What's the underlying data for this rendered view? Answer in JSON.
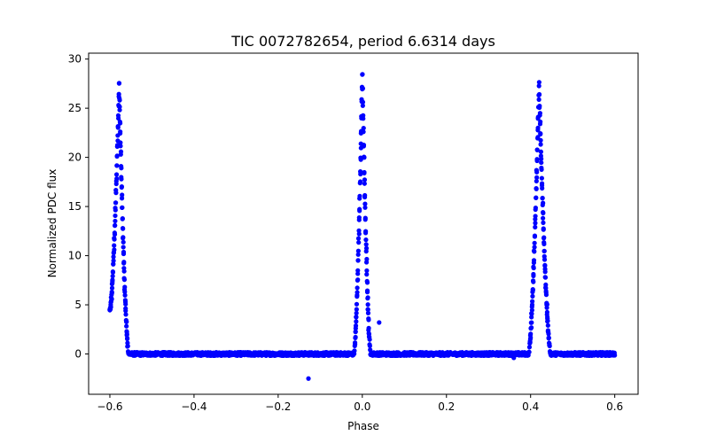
{
  "chart_data": {
    "type": "scatter",
    "title": "TIC 0072782654, period 6.6314 days",
    "xlabel": "Phase",
    "ylabel": "Normalized PDC flux",
    "xlim": [
      -0.6505,
      0.6555
    ],
    "ylim": [
      -4.1,
      30.6
    ],
    "xticks": [
      -0.6,
      -0.4,
      -0.2,
      0.0,
      0.2,
      0.4,
      0.6
    ],
    "xtick_labels": [
      "−0.6",
      "−0.4",
      "−0.2",
      "0.0",
      "0.2",
      "0.4",
      "0.6"
    ],
    "yticks": [
      0,
      5,
      10,
      15,
      20,
      25,
      30
    ],
    "ytick_labels": [
      "0",
      "5",
      "10",
      "15",
      "20",
      "25",
      "30"
    ],
    "grid": false,
    "marker_color": "#0000ff",
    "series": [
      {
        "name": "PDC flux",
        "x_range": [
          -0.6,
          0.6
        ],
        "baseline": 0.0,
        "peaks": [
          {
            "center": -0.578,
            "height": 27.4,
            "start": -0.6,
            "start_value": 4.4,
            "end": -0.555
          },
          {
            "center": 0.0,
            "height": 28.5,
            "start": -0.02,
            "end": 0.02
          },
          {
            "center": 0.42,
            "height": 27.4,
            "start": 0.395,
            "end": 0.448
          }
        ],
        "outliers": [
          {
            "x": -0.128,
            "y": -2.5
          },
          {
            "x": 0.04,
            "y": 3.2
          },
          {
            "x": 0.36,
            "y": -0.4
          }
        ]
      }
    ]
  }
}
